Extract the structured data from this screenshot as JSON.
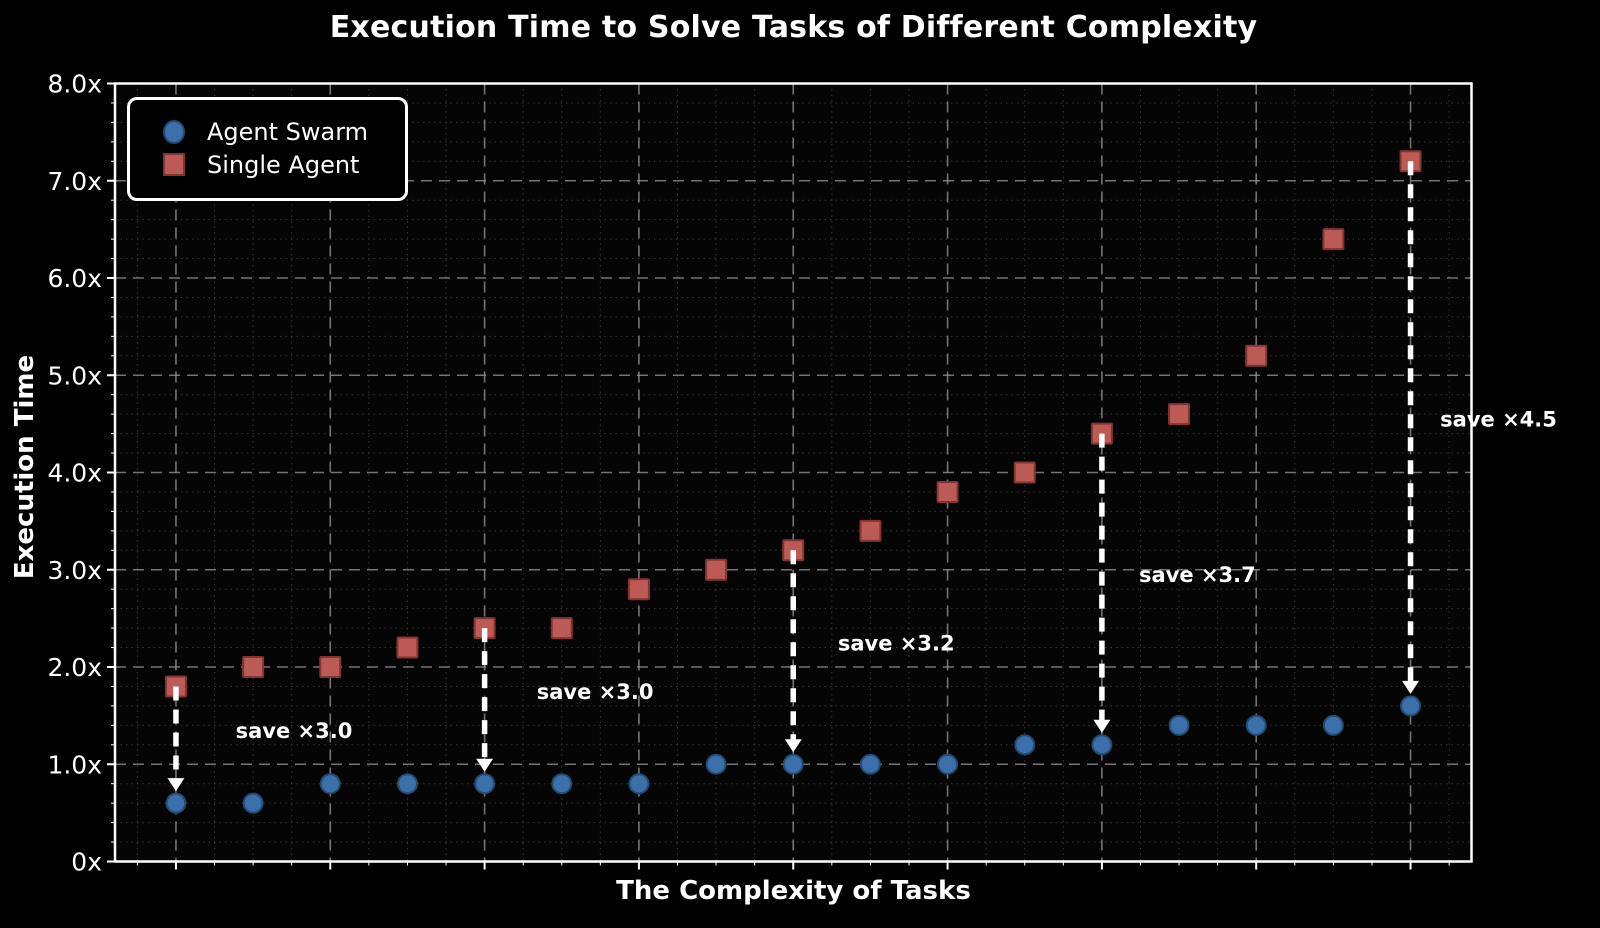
{
  "title": "Execution Time to Solve Tasks of Different Complexity",
  "xlabel": "The Complexity of Tasks",
  "ylabel": "Execution Time",
  "legend": {
    "items": [
      {
        "label": "Agent Swarm",
        "marker": "circle",
        "fill": "#3B70AB",
        "edge": "#234A70"
      },
      {
        "label": "Single Agent",
        "marker": "square",
        "fill": "#BC5A56",
        "edge": "#833431"
      }
    ],
    "position": "upper-left"
  },
  "colors": {
    "background": "#000000",
    "plot_background": "#050505",
    "spine": "#ffffff",
    "major_grid": "#999999",
    "minor_grid": "#383838",
    "text": "#ffffff",
    "arrow": "#ffffff",
    "agent_swarm_fill": "#3B70AB",
    "agent_swarm_edge": "#234A70",
    "single_agent_fill": "#BC5A56",
    "single_agent_edge": "#833431"
  },
  "chart_data": {
    "type": "scatter",
    "x": [
      1,
      2,
      3,
      4,
      5,
      6,
      7,
      8,
      9,
      10,
      11,
      12,
      13,
      14,
      15,
      16,
      17
    ],
    "series": [
      {
        "name": "Agent Swarm",
        "marker": "circle",
        "values": [
          0.6,
          0.6,
          0.8,
          0.8,
          0.8,
          0.8,
          0.8,
          1.0,
          1.0,
          1.0,
          1.0,
          1.2,
          1.2,
          1.4,
          1.4,
          1.4,
          1.6
        ]
      },
      {
        "name": "Single Agent",
        "marker": "square",
        "values": [
          1.8,
          2.0,
          2.0,
          2.2,
          2.4,
          2.4,
          2.8,
          3.0,
          3.2,
          3.4,
          3.8,
          4.0,
          4.4,
          4.6,
          5.2,
          6.4,
          7.2
        ]
      }
    ],
    "annotations": [
      {
        "x": 1,
        "label": "save ×3.0"
      },
      {
        "x": 5,
        "label": "save ×3.0"
      },
      {
        "x": 9,
        "label": "save ×3.2"
      },
      {
        "x": 13,
        "label": "save ×3.7"
      },
      {
        "x": 17,
        "label": "save ×4.5"
      }
    ],
    "yticks": [
      {
        "value": 0,
        "label": "0x"
      },
      {
        "value": 1,
        "label": "1.0x"
      },
      {
        "value": 2,
        "label": "2.0x"
      },
      {
        "value": 3,
        "label": "3.0x"
      },
      {
        "value": 4,
        "label": "4.0x"
      },
      {
        "value": 5,
        "label": "5.0x"
      },
      {
        "value": 6,
        "label": "6.0x"
      },
      {
        "value": 7,
        "label": "7.0x"
      },
      {
        "value": 8,
        "label": "8.0x"
      }
    ],
    "xtick_positions": [
      1,
      3,
      5,
      7,
      9,
      11,
      13,
      15,
      17
    ],
    "xlim": [
      0.21,
      17.79
    ],
    "ylim": [
      0,
      8
    ],
    "grid": {
      "major": "dashed",
      "minor": "dotted"
    },
    "legend_position": "upper-left"
  }
}
